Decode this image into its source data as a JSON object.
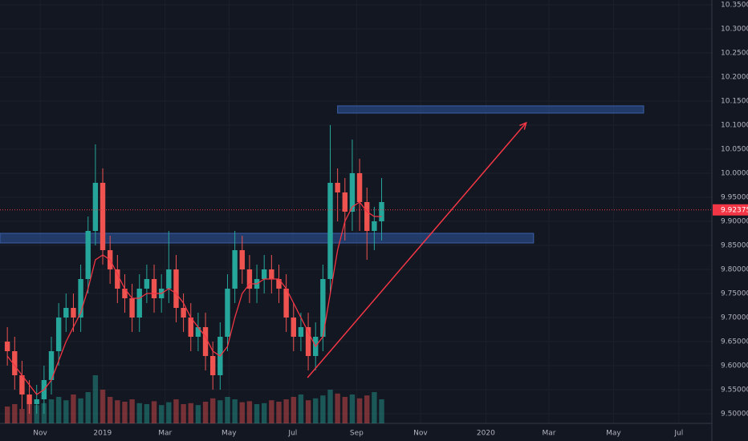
{
  "chart_data": {
    "type": "candlestick",
    "open": [
      9.65,
      9.63,
      9.58,
      9.54,
      9.52,
      9.53,
      9.57,
      9.63,
      9.7,
      9.72,
      9.7,
      9.78,
      9.88,
      9.98,
      9.84,
      9.8,
      9.76,
      9.74,
      9.7,
      9.76,
      9.78,
      9.74,
      9.76,
      9.8,
      9.72,
      9.7,
      9.66,
      9.68,
      9.62,
      9.58,
      9.66,
      9.76,
      9.84,
      9.8,
      9.76,
      9.78,
      9.8,
      9.78,
      9.76,
      9.7,
      9.66,
      9.68,
      9.62,
      9.66,
      9.78,
      9.98,
      9.96,
      9.92,
      10.0,
      9.94,
      9.88,
      9.9
    ],
    "high": [
      9.68,
      9.66,
      9.61,
      9.57,
      9.56,
      9.6,
      9.66,
      9.73,
      9.75,
      9.75,
      9.81,
      9.91,
      10.06,
      10.01,
      9.87,
      9.83,
      9.79,
      9.77,
      9.79,
      9.81,
      9.81,
      9.79,
      9.88,
      9.83,
      9.75,
      9.73,
      9.71,
      9.71,
      9.65,
      9.69,
      9.79,
      9.88,
      9.87,
      9.83,
      9.81,
      9.83,
      9.83,
      9.81,
      9.79,
      9.73,
      9.71,
      9.71,
      9.69,
      9.81,
      10.1,
      10.01,
      9.99,
      10.07,
      10.03,
      9.97,
      9.93,
      9.99
    ],
    "low": [
      9.6,
      9.55,
      9.51,
      9.5,
      9.5,
      9.5,
      9.54,
      9.6,
      9.67,
      9.67,
      9.67,
      9.75,
      9.85,
      9.81,
      9.77,
      9.73,
      9.71,
      9.67,
      9.67,
      9.73,
      9.71,
      9.71,
      9.73,
      9.69,
      9.67,
      9.63,
      9.63,
      9.59,
      9.55,
      9.55,
      9.63,
      9.73,
      9.77,
      9.73,
      9.73,
      9.75,
      9.75,
      9.73,
      9.67,
      9.63,
      9.63,
      9.59,
      9.59,
      9.63,
      9.75,
      9.9,
      9.86,
      9.88,
      9.88,
      9.82,
      9.84,
      9.86
    ],
    "close": [
      9.63,
      9.58,
      9.54,
      9.52,
      9.53,
      9.57,
      9.63,
      9.7,
      9.72,
      9.7,
      9.78,
      9.88,
      9.98,
      9.84,
      9.8,
      9.76,
      9.74,
      9.7,
      9.76,
      9.78,
      9.74,
      9.76,
      9.8,
      9.72,
      9.7,
      9.66,
      9.68,
      9.62,
      9.58,
      9.66,
      9.76,
      9.84,
      9.8,
      9.76,
      9.78,
      9.8,
      9.78,
      9.76,
      9.7,
      9.66,
      9.68,
      9.62,
      9.66,
      9.78,
      9.98,
      9.96,
      9.92,
      10.0,
      9.94,
      9.88,
      9.9,
      9.94
    ],
    "volume": [
      35,
      40,
      30,
      45,
      38,
      42,
      50,
      55,
      48,
      60,
      52,
      65,
      100,
      70,
      55,
      48,
      45,
      50,
      42,
      40,
      46,
      38,
      44,
      50,
      40,
      42,
      38,
      45,
      52,
      48,
      55,
      50,
      44,
      46,
      40,
      42,
      48,
      45,
      50,
      55,
      60,
      48,
      52,
      58,
      70,
      62,
      55,
      60,
      52,
      58,
      65,
      50
    ],
    "ma": [
      9.62,
      9.6,
      9.58,
      9.56,
      9.54,
      9.55,
      9.57,
      9.61,
      9.65,
      9.68,
      9.71,
      9.76,
      9.82,
      9.83,
      9.82,
      9.79,
      9.76,
      9.74,
      9.74,
      9.75,
      9.75,
      9.75,
      9.76,
      9.75,
      9.73,
      9.7,
      9.68,
      9.66,
      9.63,
      9.62,
      9.64,
      9.7,
      9.75,
      9.77,
      9.77,
      9.78,
      9.78,
      9.78,
      9.76,
      9.73,
      9.7,
      9.67,
      9.64,
      9.66,
      9.75,
      9.84,
      9.9,
      9.93,
      9.94,
      9.92,
      9.91,
      9.91
    ],
    "up_color": "#26a69a",
    "down_color": "#ef5350",
    "ma_color": "#f23645",
    "last_price": 9.92375,
    "zones": [
      {
        "price": [
          10.125,
          10.14
        ],
        "x": [
          45,
          86.7
        ]
      },
      {
        "price": [
          9.855,
          9.875
        ],
        "x": [
          -1,
          71.7
        ]
      }
    ],
    "arrow": {
      "from": [
        40.9,
        9.575
      ],
      "to": [
        70.7,
        10.105
      ]
    },
    "xlim": [
      -1,
      96
    ],
    "ylim": [
      9.48,
      10.36
    ],
    "xticks": [
      {
        "value": 4.47,
        "label": "Nov"
      },
      {
        "value": 12.98,
        "label": "2019"
      },
      {
        "value": 21.5,
        "label": "Mar"
      },
      {
        "value": 30.2,
        "label": "May"
      },
      {
        "value": 38.9,
        "label": "Jul"
      },
      {
        "value": 47.6,
        "label": "Sep"
      },
      {
        "value": 56.3,
        "label": "Nov"
      },
      {
        "value": 65.2,
        "label": "2020"
      },
      {
        "value": 73.8,
        "label": "Mar"
      },
      {
        "value": 82.6,
        "label": "May"
      },
      {
        "value": 91.5,
        "label": "Jul"
      }
    ],
    "yticks": [
      {
        "value": 9.5,
        "label": "9.50000"
      },
      {
        "value": 9.55,
        "label": "9.55000"
      },
      {
        "value": 9.6,
        "label": "9.60000"
      },
      {
        "value": 9.65,
        "label": "9.65000"
      },
      {
        "value": 9.7,
        "label": "9.70000"
      },
      {
        "value": 9.75,
        "label": "9.75000"
      },
      {
        "value": 9.8,
        "label": "9.80000"
      },
      {
        "value": 9.85,
        "label": "9.85000"
      },
      {
        "value": 9.9,
        "label": "9.90000"
      },
      {
        "value": 9.95,
        "label": "9.95000"
      },
      {
        "value": 10.0,
        "label": "10.00000"
      },
      {
        "value": 10.05,
        "label": "10.05000"
      },
      {
        "value": 10.1,
        "label": "10.10000"
      },
      {
        "value": 10.15,
        "label": "10.15000"
      },
      {
        "value": 10.2,
        "label": "10.20000"
      },
      {
        "value": 10.25,
        "label": "10.25000"
      },
      {
        "value": 10.3,
        "label": "10.30000"
      },
      {
        "value": 10.35,
        "label": "10.35000"
      }
    ],
    "grid": true
  }
}
